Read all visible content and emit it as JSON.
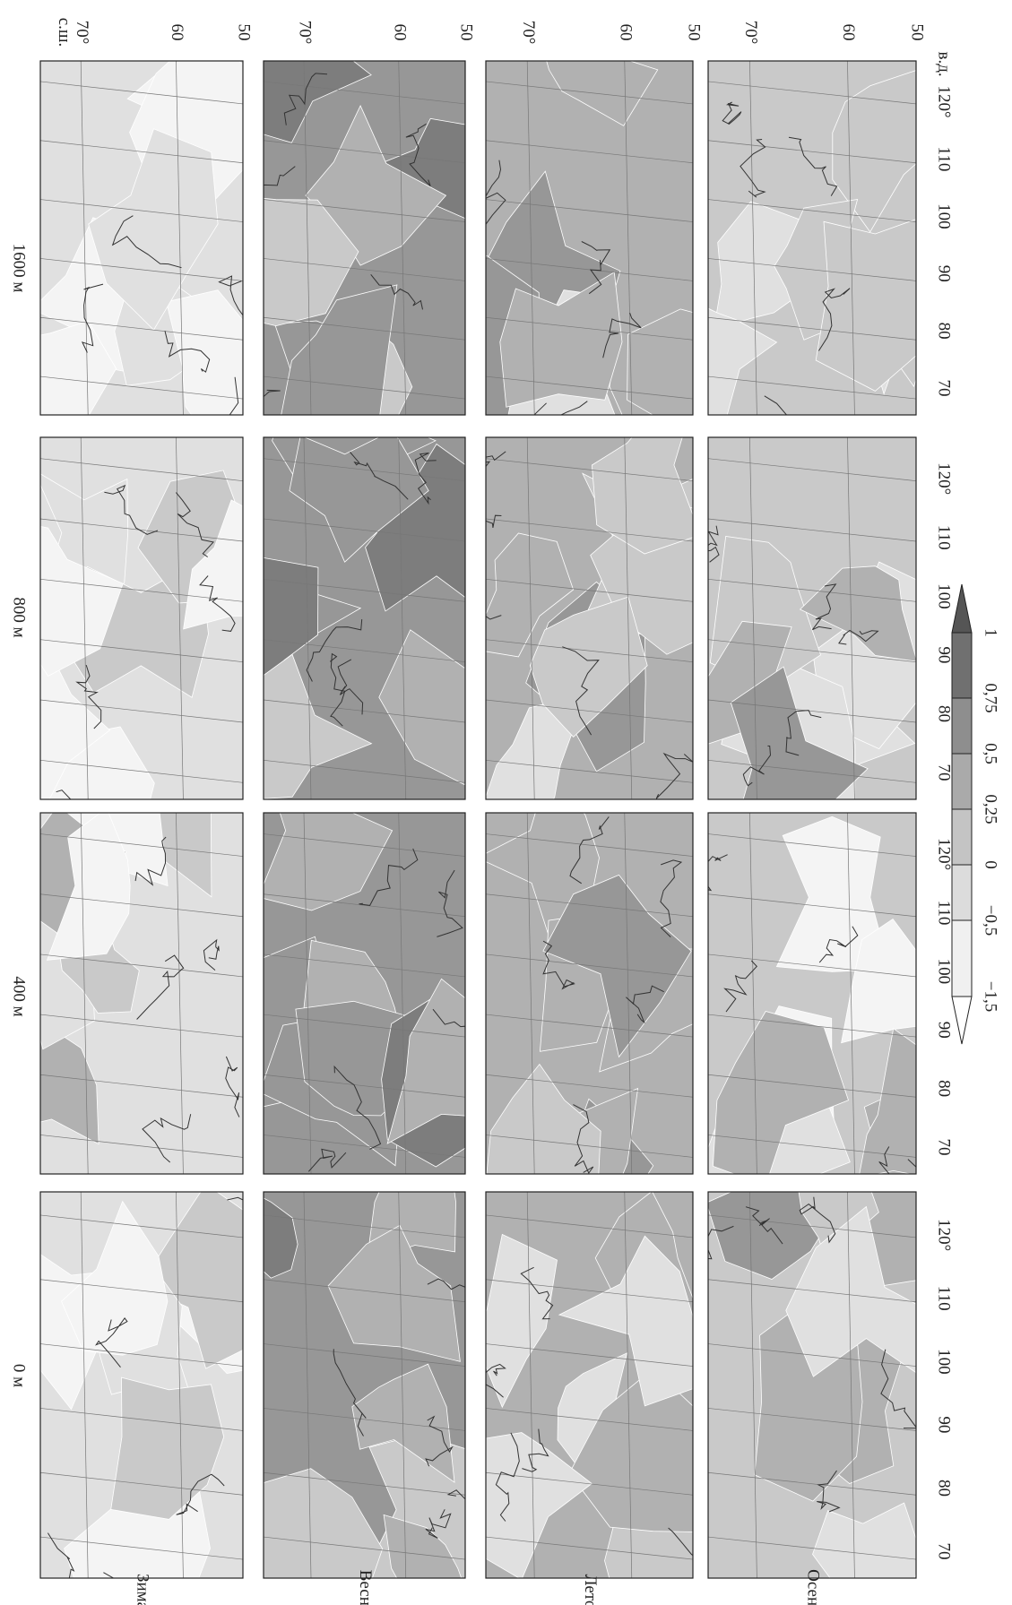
{
  "columns": [
    "0 м",
    "400 м",
    "800 м",
    "1600 м"
  ],
  "rows": [
    "Зима",
    "Весна",
    "Лето",
    "Осень"
  ],
  "latitude_labels": {
    "unit": "с.ш.",
    "ticks": [
      "70°",
      "60",
      "50"
    ]
  },
  "longitude_labels": {
    "ticks": [
      "70",
      "80",
      "90",
      "100",
      "110",
      "120°"
    ],
    "unit": "в.д."
  },
  "colorbar": {
    "labels": [
      "−1,5",
      "−0,5",
      "0",
      "0,25",
      "0,5",
      "0,75",
      "1"
    ]
  }
}
